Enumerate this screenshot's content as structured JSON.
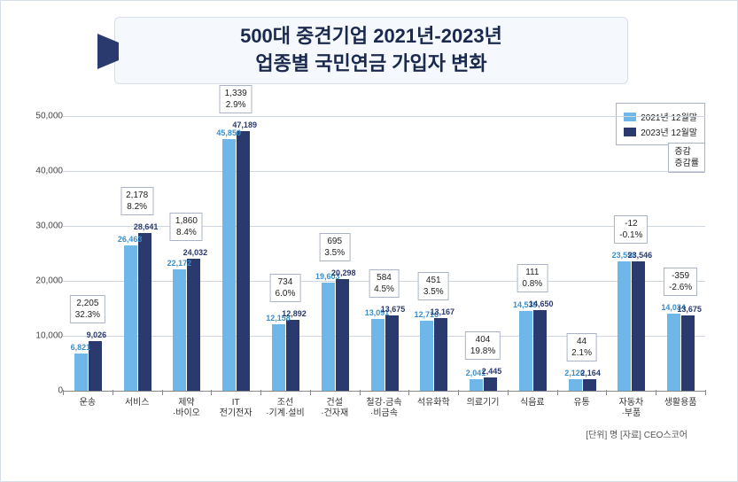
{
  "title_line1": "500대 중견기업 2021년-2023년",
  "title_line2": "업종별 국민연금 가입자 변화",
  "legend": {
    "a": "2021년 12월말",
    "b": "2023년 12월말",
    "box1": "증감",
    "box2": "증감률"
  },
  "footer": "[단위] 명   [자료] CEO스코어",
  "ylim": [
    0,
    50000
  ],
  "ytick_step": 10000,
  "ylabels": [
    "0",
    "10,000",
    "20,000",
    "30,000",
    "40,000",
    "50,000"
  ],
  "colors": {
    "a": "#6eb7e8",
    "b": "#2a3a6e",
    "grid": "#cfd6e2",
    "title_bg": "#f5f8fc"
  },
  "categories": [
    {
      "name": "운송",
      "v2021": 6821,
      "v2023": 9026,
      "l2021": "6,821",
      "l2023": "9,026",
      "diff": "2,205",
      "rate": "32.3%"
    },
    {
      "name": "서비스",
      "v2021": 26463,
      "v2023": 28641,
      "l2021": "26,463",
      "l2023": "28,641",
      "diff": "2,178",
      "rate": "8.2%"
    },
    {
      "name": "제약\n·바이오",
      "v2021": 22172,
      "v2023": 24032,
      "l2021": "22,172",
      "l2023": "24,032",
      "diff": "1,860",
      "rate": "8.4%"
    },
    {
      "name": "IT\n전기전자",
      "v2021": 45850,
      "v2023": 47189,
      "l2021": "45,850",
      "l2023": "47,189",
      "diff": "1,339",
      "rate": "2.9%"
    },
    {
      "name": "조선\n·기계·설비",
      "v2021": 12158,
      "v2023": 12892,
      "l2021": "12,158",
      "l2023": "12,892",
      "diff": "734",
      "rate": "6.0%"
    },
    {
      "name": "건설\n·건자재",
      "v2021": 19603,
      "v2023": 20298,
      "l2021": "19,603",
      "l2023": "20,298",
      "diff": "695",
      "rate": "3.5%"
    },
    {
      "name": "철강·금속\n·비금속",
      "v2021": 13091,
      "v2023": 13675,
      "l2021": "13,091",
      "l2023": "13,675",
      "diff": "584",
      "rate": "4.5%"
    },
    {
      "name": "석유화학",
      "v2021": 12716,
      "v2023": 13167,
      "l2021": "12,716",
      "l2023": "13,167",
      "diff": "451",
      "rate": "3.5%"
    },
    {
      "name": "의료기기",
      "v2021": 2041,
      "v2023": 2445,
      "l2021": "2,041",
      "l2023": "2,445",
      "diff": "404",
      "rate": "19.8%"
    },
    {
      "name": "식음료",
      "v2021": 14539,
      "v2023": 14650,
      "l2021": "14,539",
      "l2023": "14,650",
      "diff": "111",
      "rate": "0.8%"
    },
    {
      "name": "유통",
      "v2021": 2120,
      "v2023": 2164,
      "l2021": "2,120",
      "l2023": "2,164",
      "diff": "44",
      "rate": "2.1%"
    },
    {
      "name": "자동차\n·부품",
      "v2021": 23558,
      "v2023": 23546,
      "l2021": "23,558",
      "l2023": "23,546",
      "diff": "-12",
      "rate": "-0.1%"
    },
    {
      "name": "생활용품",
      "v2021": 14034,
      "v2023": 13675,
      "l2021": "14,034",
      "l2023": "13,675",
      "diff": "-359",
      "rate": "-2.6%"
    }
  ]
}
